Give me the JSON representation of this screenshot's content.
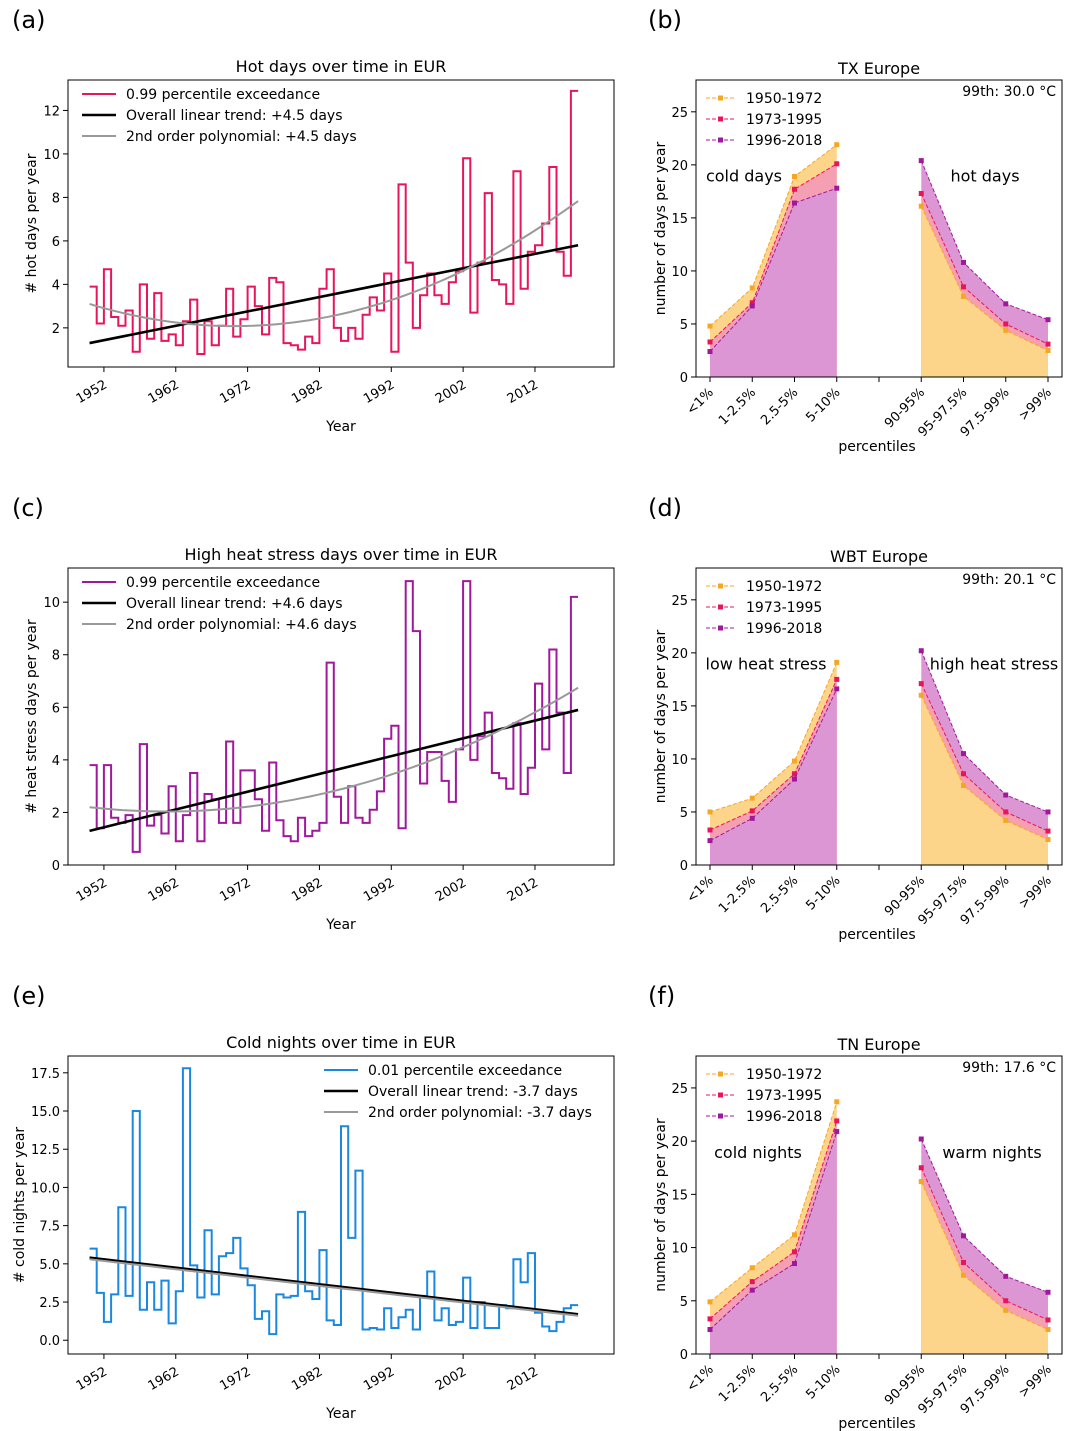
{
  "panels": {
    "a": {
      "letter": "(a)",
      "chart_data": {
        "type": "line",
        "title": "Hot days over time in EUR",
        "xlabel": "Year",
        "ylabel": "# hot days per year",
        "xlim": [
          1947,
          2023
        ],
        "ylim": [
          0.2,
          13.4
        ],
        "yticks": [
          2,
          4,
          6,
          8,
          10,
          12
        ],
        "ytick_labels": [
          "2",
          "4",
          "6",
          "8",
          "10",
          "12"
        ],
        "xticks": [
          1952,
          1962,
          1972,
          1982,
          1992,
          2002,
          2012
        ],
        "xtick_labels": [
          "1952",
          "1962",
          "1972",
          "1982",
          "1992",
          "2002",
          "2012"
        ],
        "legend_position": "upper left",
        "legend": [
          "0.99 percentile exceedance",
          "Overall linear trend: +4.5 days",
          "2nd order polynomial: +4.5 days"
        ],
        "series": [
          {
            "name": "0.99 percentile exceedance",
            "kind": "step",
            "color": "#e8145c",
            "x_start": 1950,
            "values": [
              3.9,
              2.2,
              4.7,
              2.5,
              2.1,
              2.8,
              0.9,
              4.0,
              1.5,
              3.6,
              1.4,
              1.7,
              1.2,
              2.3,
              3.3,
              0.8,
              2.3,
              1.2,
              2.1,
              3.8,
              1.6,
              2.4,
              3.9,
              3.0,
              1.7,
              4.3,
              4.1,
              1.3,
              1.2,
              1.0,
              1.6,
              1.3,
              3.8,
              4.7,
              2.0,
              1.4,
              2.0,
              1.5,
              2.6,
              3.4,
              2.8,
              4.5,
              0.9,
              8.6,
              5.0,
              2.0,
              3.5,
              4.5,
              3.5,
              3.1,
              4.1,
              4.6,
              9.8,
              2.7,
              5.0,
              8.2,
              4.2,
              4.0,
              3.1,
              9.2,
              3.8,
              5.5,
              5.8,
              6.8,
              9.4,
              5.5,
              4.4,
              12.9
            ]
          },
          {
            "name": "Overall linear trend: +4.5 days",
            "kind": "line",
            "color": "#000000",
            "x": [
              1950,
              2018
            ],
            "y": [
              1.3,
              5.8
            ]
          },
          {
            "name": "2nd order polynomial: +4.5 days",
            "kind": "quad",
            "color": "#999999",
            "x": [
              1950,
              2018
            ],
            "coeffs": [
              3.1,
              -0.1013,
              0.002513
            ]
          }
        ]
      }
    },
    "b": {
      "letter": "(b)",
      "note": "99th: 30.0 °C",
      "label_left": "cold days",
      "label_right": "hot days",
      "chart_data": {
        "type": "area",
        "title": "TX Europe",
        "xlabel": "percentiles",
        "ylabel": "number of days per year",
        "ylim": [
          0,
          28
        ],
        "yticks": [
          0,
          5,
          10,
          15,
          20,
          25
        ],
        "ytick_labels": [
          "0",
          "5",
          "10",
          "15",
          "20",
          "25"
        ],
        "categories": [
          "<1%",
          "1-2.5%",
          "2.5-5%",
          "5-10%",
          "90-95%",
          "95-97.5%",
          "97.5-99%",
          ">99%"
        ],
        "legend_position": "upper left",
        "series": [
          {
            "name": "1950-1972",
            "color": "#f5a623",
            "fill": "#fdd58a",
            "values": [
              4.8,
              8.4,
              18.9,
              21.9,
              16.1,
              7.6,
              4.4,
              2.5
            ]
          },
          {
            "name": "1973-1995",
            "color": "#e8145c",
            "fill": "#f5a0b2",
            "values": [
              3.3,
              7.0,
              17.7,
              20.1,
              17.3,
              8.5,
              5.0,
              3.1
            ]
          },
          {
            "name": "1996-2018",
            "color": "#a0189c",
            "fill": "#dc96d4",
            "values": [
              2.4,
              6.7,
              16.4,
              17.8,
              20.4,
              10.8,
              6.9,
              5.4
            ]
          }
        ]
      }
    },
    "c": {
      "letter": "(c)",
      "chart_data": {
        "type": "line",
        "title": "High heat stress days over time in EUR",
        "xlabel": "Year",
        "ylabel": "# heat stress days per year",
        "xlim": [
          1947,
          2023
        ],
        "ylim": [
          0,
          11.3
        ],
        "yticks": [
          0,
          2,
          4,
          6,
          8,
          10
        ],
        "ytick_labels": [
          "0",
          "2",
          "4",
          "6",
          "8",
          "10"
        ],
        "xticks": [
          1952,
          1962,
          1972,
          1982,
          1992,
          2002,
          2012
        ],
        "xtick_labels": [
          "1952",
          "1962",
          "1972",
          "1982",
          "1992",
          "2002",
          "2012"
        ],
        "legend_position": "upper left",
        "legend": [
          "0.99 percentile exceedance",
          "Overall linear trend: +4.6 days",
          "2nd order polynomial: +4.6 days"
        ],
        "series": [
          {
            "name": "0.99 percentile exceedance",
            "kind": "step",
            "color": "#a0189c",
            "x_start": 1950,
            "values": [
              3.8,
              1.4,
              3.8,
              1.8,
              1.6,
              1.9,
              0.5,
              4.6,
              1.5,
              1.9,
              1.2,
              3.0,
              0.9,
              1.9,
              3.5,
              0.9,
              2.7,
              2.5,
              1.6,
              4.7,
              1.6,
              3.6,
              3.6,
              2.5,
              1.3,
              3.9,
              1.7,
              1.1,
              0.9,
              1.8,
              1.1,
              1.3,
              1.6,
              7.7,
              2.6,
              1.6,
              3.0,
              1.8,
              1.6,
              2.1,
              2.8,
              4.8,
              5.3,
              1.4,
              10.8,
              8.9,
              3.1,
              4.3,
              4.3,
              3.2,
              2.4,
              4.4,
              10.8,
              4.0,
              4.9,
              5.8,
              3.5,
              3.3,
              2.9,
              5.4,
              2.7,
              3.7,
              6.9,
              4.4,
              8.2,
              5.8,
              3.5,
              10.2
            ]
          },
          {
            "name": "Overall linear trend: +4.6 days",
            "kind": "line",
            "color": "#000000",
            "x": [
              1950,
              2018
            ],
            "y": [
              1.3,
              5.9
            ]
          },
          {
            "name": "2nd order polynomial: +4.6 days",
            "kind": "quad",
            "color": "#999999",
            "x": [
              1950,
              2018
            ],
            "coeffs": [
              2.2,
              -0.0307,
              0.001434
            ]
          }
        ]
      }
    },
    "d": {
      "letter": "(d)",
      "note": "99th: 20.1 °C",
      "label_left": "low heat stress",
      "label_right": "high heat stress",
      "chart_data": {
        "type": "area",
        "title": "WBT Europe",
        "xlabel": "percentiles",
        "ylabel": "number of days per year",
        "ylim": [
          0,
          28
        ],
        "yticks": [
          0,
          5,
          10,
          15,
          20,
          25
        ],
        "ytick_labels": [
          "0",
          "5",
          "10",
          "15",
          "20",
          "25"
        ],
        "categories": [
          "<1%",
          "1-2.5%",
          "2.5-5%",
          "5-10%",
          "90-95%",
          "95-97.5%",
          "97.5-99%",
          ">99%"
        ],
        "legend_position": "upper left",
        "series": [
          {
            "name": "1950-1972",
            "color": "#f5a623",
            "fill": "#fdd58a",
            "values": [
              5.0,
              6.3,
              9.8,
              19.1,
              16.0,
              7.5,
              4.2,
              2.4
            ]
          },
          {
            "name": "1973-1995",
            "color": "#e8145c",
            "fill": "#f5a0b2",
            "values": [
              3.3,
              5.1,
              8.6,
              17.5,
              17.1,
              8.6,
              5.0,
              3.2
            ]
          },
          {
            "name": "1996-2018",
            "color": "#a0189c",
            "fill": "#dc96d4",
            "values": [
              2.3,
              4.4,
              8.1,
              16.6,
              20.2,
              10.5,
              6.6,
              5.0
            ]
          }
        ]
      }
    },
    "e": {
      "letter": "(e)",
      "chart_data": {
        "type": "line",
        "title": "Cold nights over time in EUR",
        "xlabel": "Year",
        "ylabel": "# cold nights per year",
        "xlim": [
          1947,
          2023
        ],
        "ylim": [
          -0.9,
          18.6
        ],
        "yticks": [
          0,
          2.5,
          5,
          7.5,
          10,
          12.5,
          15,
          17.5
        ],
        "ytick_labels": [
          "0.0",
          "2.5",
          "5.0",
          "7.5",
          "10.0",
          "12.5",
          "15.0",
          "17.5"
        ],
        "xticks": [
          1952,
          1962,
          1972,
          1982,
          1992,
          2002,
          2012
        ],
        "xtick_labels": [
          "1952",
          "1962",
          "1972",
          "1982",
          "1992",
          "2002",
          "2012"
        ],
        "legend_position": "upper right",
        "legend": [
          "0.01 percentile exceedance",
          "Overall linear trend: -3.7 days",
          "2nd order polynomial: -3.7 days"
        ],
        "series": [
          {
            "name": "0.01 percentile exceedance",
            "kind": "step",
            "color": "#1a88e0",
            "x_start": 1950,
            "values": [
              6.0,
              3.1,
              1.2,
              3.0,
              8.7,
              2.9,
              15.0,
              2.0,
              3.8,
              2.0,
              3.9,
              1.1,
              3.2,
              17.8,
              4.9,
              2.8,
              7.2,
              3.0,
              5.5,
              5.7,
              6.7,
              4.7,
              3.6,
              1.4,
              1.9,
              0.4,
              3.0,
              2.8,
              2.9,
              8.4,
              3.2,
              2.7,
              5.9,
              1.3,
              1.0,
              14.0,
              6.7,
              11.1,
              0.7,
              0.8,
              0.7,
              2.1,
              0.8,
              1.5,
              2.0,
              0.7,
              2.9,
              4.5,
              1.3,
              2.1,
              1.0,
              1.2,
              4.1,
              0.8,
              2.5,
              0.8,
              0.8,
              2.3,
              2.1,
              5.3,
              3.8,
              5.7,
              1.8,
              0.9,
              0.6,
              1.2,
              2.1,
              2.3
            ]
          },
          {
            "name": "Overall linear trend: -3.7 days",
            "kind": "line",
            "color": "#000000",
            "x": [
              1950,
              2018
            ],
            "y": [
              5.4,
              1.7
            ]
          },
          {
            "name": "2nd order polynomial: -3.7 days",
            "kind": "quad",
            "color": "#999999",
            "x": [
              1950,
              2018
            ],
            "coeffs": [
              5.3,
              -0.0544,
              0.0
            ]
          }
        ]
      }
    },
    "f": {
      "letter": "(f)",
      "note": "99th: 17.6 °C",
      "label_left": "cold nights",
      "label_right": "warm nights",
      "chart_data": {
        "type": "area",
        "title": "TN Europe",
        "xlabel": "percentiles",
        "ylabel": "number of days per year",
        "ylim": [
          0,
          28
        ],
        "yticks": [
          0,
          5,
          10,
          15,
          20,
          25
        ],
        "ytick_labels": [
          "0",
          "5",
          "10",
          "15",
          "20",
          "25"
        ],
        "categories": [
          "<1%",
          "1-2.5%",
          "2.5-5%",
          "5-10%",
          "90-95%",
          "95-97.5%",
          "97.5-99%",
          ">99%"
        ],
        "legend_position": "upper left",
        "series": [
          {
            "name": "1950-1972",
            "color": "#f5a623",
            "fill": "#fdd58a",
            "values": [
              4.9,
              8.1,
              11.2,
              23.7,
              16.2,
              7.4,
              4.1,
              2.3
            ]
          },
          {
            "name": "1973-1995",
            "color": "#e8145c",
            "fill": "#f5a0b2",
            "values": [
              3.3,
              6.8,
              9.6,
              21.9,
              17.5,
              8.6,
              5.0,
              3.2
            ]
          },
          {
            "name": "1996-2018",
            "color": "#a0189c",
            "fill": "#dc96d4",
            "values": [
              2.3,
              6.0,
              8.5,
              20.9,
              20.2,
              11.1,
              7.3,
              5.8
            ]
          }
        ]
      }
    }
  }
}
